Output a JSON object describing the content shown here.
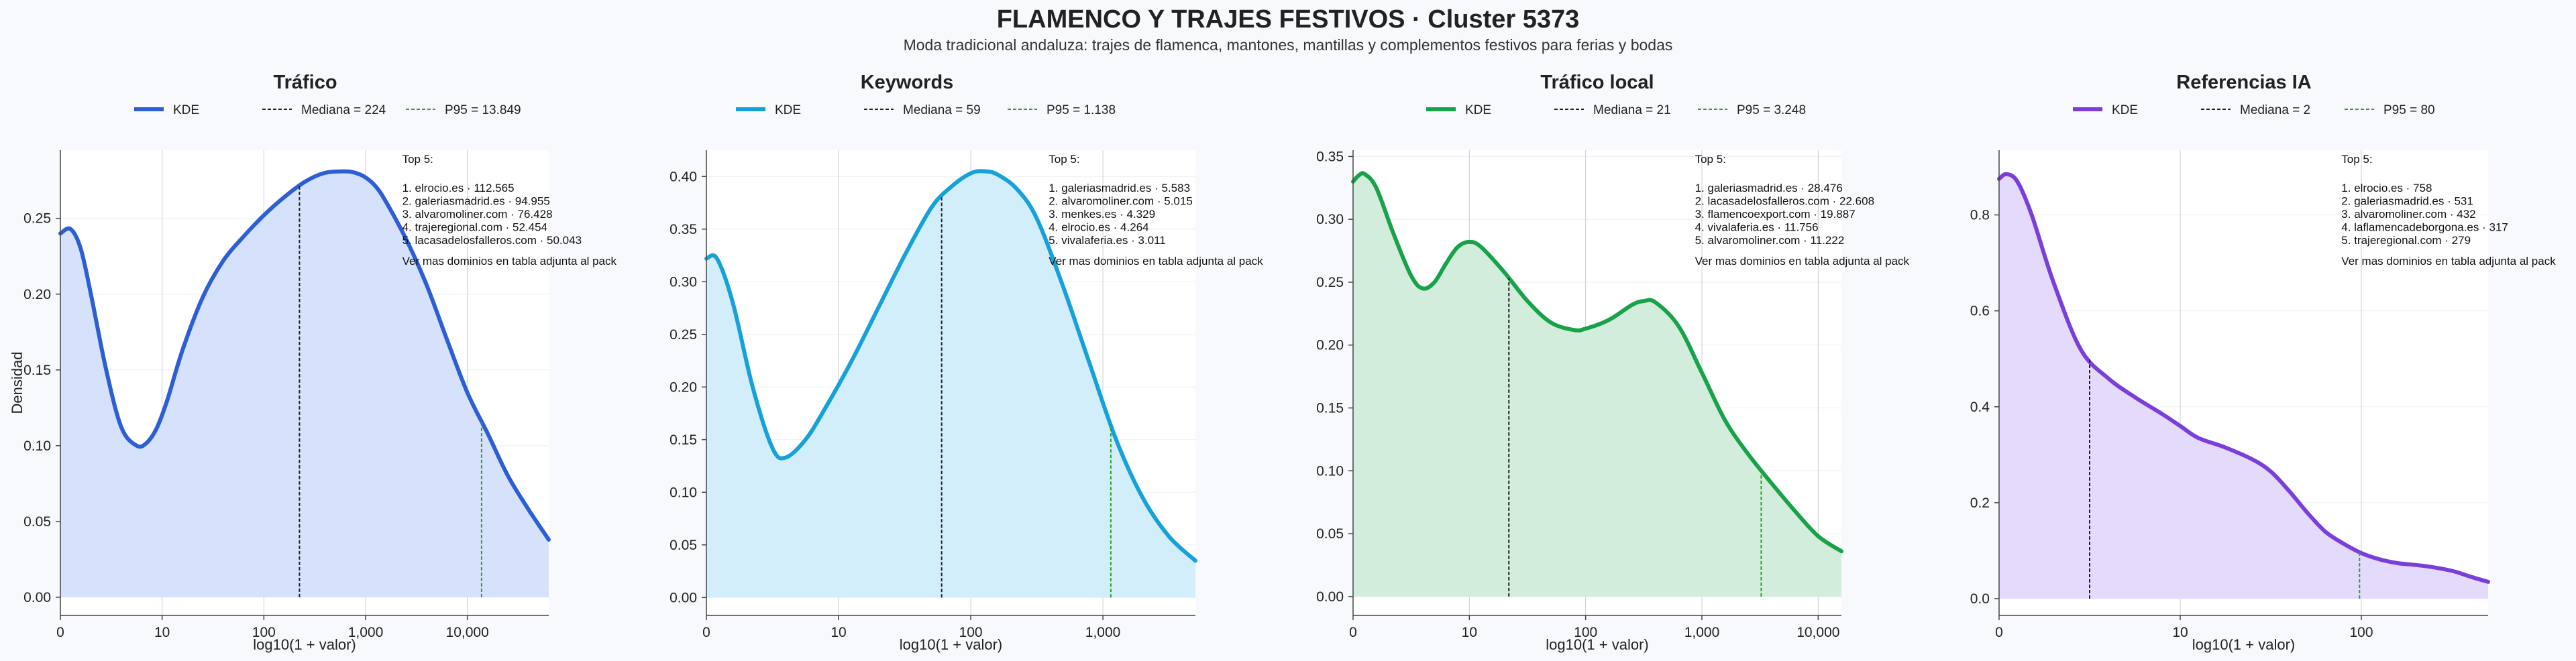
{
  "page": {
    "title": "FLAMENCO Y TRAJES FESTIVOS · Cluster 5373",
    "subtitle": "Moda tradicional andaluza: trajes de flamenca, mantones, mantillas y complementos festivos para ferias y bodas"
  },
  "colors": {
    "background": "#f7f9fc",
    "median_line": "#222222",
    "p95_line": "#2ca02c"
  },
  "chart_data": [
    {
      "type": "area",
      "title": "Tráfico",
      "color": "#2c5fd4",
      "fill": "#d6e2fb",
      "xlabel": "log10(1 + valor)",
      "ylabel": "Densidad",
      "xscale": "log",
      "xlim": [
        0,
        4.8
      ],
      "ylim": [
        -0.012,
        0.295
      ],
      "xticks": [
        {
          "v": 0,
          "label": "0"
        },
        {
          "v": 1,
          "label": "10"
        },
        {
          "v": 2,
          "label": "100"
        },
        {
          "v": 3,
          "label": "1,000"
        },
        {
          "v": 4,
          "label": "10,000"
        }
      ],
      "yticks": [
        {
          "v": 0,
          "label": "0.00"
        },
        {
          "v": 0.05,
          "label": "0.05"
        },
        {
          "v": 0.1,
          "label": "0.10"
        },
        {
          "v": 0.15,
          "label": "0.15"
        },
        {
          "v": 0.2,
          "label": "0.20"
        },
        {
          "v": 0.25,
          "label": "0.25"
        }
      ],
      "legend": [
        {
          "label": "KDE",
          "style": "line"
        },
        {
          "label": "Mediana = 224",
          "style": "median"
        },
        {
          "label": "P95 = 13.849",
          "style": "p95"
        }
      ],
      "legend_position": "top-center",
      "median_x": 2.35,
      "p95_x": 4.14,
      "series": [
        {
          "name": "KDE",
          "x": [
            0,
            0.1,
            0.2,
            0.3,
            0.45,
            0.6,
            0.75,
            0.85,
            0.95,
            1.05,
            1.2,
            1.4,
            1.6,
            1.8,
            2.0,
            2.2,
            2.4,
            2.6,
            2.8,
            2.9,
            3.0,
            3.1,
            3.2,
            3.4,
            3.6,
            3.8,
            4.0,
            4.2,
            4.4,
            4.6,
            4.8
          ],
          "y": [
            0.24,
            0.243,
            0.23,
            0.2,
            0.15,
            0.112,
            0.1,
            0.102,
            0.112,
            0.13,
            0.163,
            0.198,
            0.222,
            0.238,
            0.252,
            0.264,
            0.274,
            0.28,
            0.281,
            0.28,
            0.277,
            0.271,
            0.261,
            0.236,
            0.206,
            0.17,
            0.135,
            0.108,
            0.08,
            0.058,
            0.038
          ]
        }
      ],
      "annotation": {
        "title": "Top 5:",
        "lines": [
          "1. elrocio.es · 112.565",
          "2. galeriasmadrid.es · 94.955",
          "3. alvaromoliner.com · 76.428",
          "4. trajeregional.com · 52.454",
          "5. lacasadelosfalleros.com · 50.043"
        ],
        "footer": "Ver mas dominios en tabla adjunta al pack"
      }
    },
    {
      "type": "area",
      "title": "Keywords",
      "color": "#16a2d8",
      "fill": "#d2eefb",
      "xlabel": "log10(1 + valor)",
      "ylabel": "",
      "xscale": "log",
      "xlim": [
        0,
        3.7
      ],
      "ylim": [
        -0.017,
        0.425
      ],
      "xticks": [
        {
          "v": 0,
          "label": "0"
        },
        {
          "v": 1,
          "label": "10"
        },
        {
          "v": 2,
          "label": "100"
        },
        {
          "v": 3,
          "label": "1,000"
        }
      ],
      "yticks": [
        {
          "v": 0,
          "label": "0.00"
        },
        {
          "v": 0.05,
          "label": "0.05"
        },
        {
          "v": 0.1,
          "label": "0.10"
        },
        {
          "v": 0.15,
          "label": "0.15"
        },
        {
          "v": 0.2,
          "label": "0.20"
        },
        {
          "v": 0.25,
          "label": "0.25"
        },
        {
          "v": 0.3,
          "label": "0.30"
        },
        {
          "v": 0.35,
          "label": "0.35"
        },
        {
          "v": 0.4,
          "label": "0.40"
        }
      ],
      "legend": [
        {
          "label": "KDE",
          "style": "line"
        },
        {
          "label": "Mediana = 59",
          "style": "median"
        },
        {
          "label": "P95 = 1.138",
          "style": "p95"
        }
      ],
      "legend_position": "top-center",
      "median_x": 1.78,
      "p95_x": 3.06,
      "series": [
        {
          "name": "KDE",
          "x": [
            0,
            0.08,
            0.2,
            0.35,
            0.5,
            0.6,
            0.75,
            0.9,
            1.1,
            1.3,
            1.5,
            1.7,
            1.85,
            2.0,
            2.1,
            2.2,
            2.35,
            2.5,
            2.7,
            2.9,
            3.1,
            3.3,
            3.5,
            3.7
          ],
          "y": [
            0.322,
            0.322,
            0.28,
            0.2,
            0.142,
            0.133,
            0.15,
            0.18,
            0.225,
            0.275,
            0.325,
            0.37,
            0.39,
            0.403,
            0.405,
            0.402,
            0.388,
            0.36,
            0.295,
            0.222,
            0.15,
            0.095,
            0.058,
            0.035
          ]
        }
      ],
      "annotation": {
        "title": "Top 5:",
        "lines": [
          "1. galeriasmadrid.es · 5.583",
          "2. alvaromoliner.com · 5.015",
          "3. menkes.es · 4.329",
          "4. elrocio.es · 4.264",
          "5. vivalaferia.es · 3.011"
        ],
        "footer": "Ver mas dominios en tabla adjunta al pack"
      }
    },
    {
      "type": "area",
      "title": "Tráfico local",
      "color": "#18a24a",
      "fill": "#d2eddb",
      "xlabel": "log10(1 + valor)",
      "ylabel": "",
      "xscale": "log",
      "xlim": [
        0,
        4.2
      ],
      "ylim": [
        -0.015,
        0.355
      ],
      "xticks": [
        {
          "v": 0,
          "label": "0"
        },
        {
          "v": 1,
          "label": "10"
        },
        {
          "v": 2,
          "label": "100"
        },
        {
          "v": 3,
          "label": "1,000"
        },
        {
          "v": 4,
          "label": "10,000"
        }
      ],
      "yticks": [
        {
          "v": 0,
          "label": "0.00"
        },
        {
          "v": 0.05,
          "label": "0.05"
        },
        {
          "v": 0.1,
          "label": "0.10"
        },
        {
          "v": 0.15,
          "label": "0.15"
        },
        {
          "v": 0.2,
          "label": "0.20"
        },
        {
          "v": 0.25,
          "label": "0.25"
        },
        {
          "v": 0.3,
          "label": "0.30"
        },
        {
          "v": 0.35,
          "label": "0.35"
        }
      ],
      "legend": [
        {
          "label": "KDE",
          "style": "line"
        },
        {
          "label": "Mediana = 21",
          "style": "median"
        },
        {
          "label": "P95 = 3.248",
          "style": "p95"
        }
      ],
      "legend_position": "top-center",
      "median_x": 1.34,
      "p95_x": 3.51,
      "series": [
        {
          "name": "KDE",
          "x": [
            0,
            0.05,
            0.1,
            0.2,
            0.35,
            0.5,
            0.6,
            0.7,
            0.8,
            0.9,
            1.0,
            1.1,
            1.3,
            1.5,
            1.7,
            1.9,
            2.0,
            2.2,
            2.4,
            2.5,
            2.6,
            2.8,
            3.0,
            3.2,
            3.4,
            3.6,
            3.8,
            4.0,
            4.2
          ],
          "y": [
            0.33,
            0.335,
            0.336,
            0.325,
            0.288,
            0.255,
            0.245,
            0.25,
            0.265,
            0.278,
            0.282,
            0.278,
            0.258,
            0.235,
            0.218,
            0.212,
            0.213,
            0.22,
            0.232,
            0.235,
            0.234,
            0.215,
            0.178,
            0.14,
            0.113,
            0.09,
            0.068,
            0.048,
            0.036
          ]
        }
      ],
      "annotation": {
        "title": "Top 5:",
        "lines": [
          "1. galeriasmadrid.es · 28.476",
          "2. lacasadelosfalleros.com · 22.608",
          "3. flamencoexport.com · 19.887",
          "4. vivalaferia.es · 11.756",
          "5. alvaromoliner.com · 11.222"
        ],
        "footer": "Ver mas dominios en tabla adjunta al pack"
      }
    },
    {
      "type": "area",
      "title": "Referencias IA",
      "color": "#7a3fdb",
      "fill": "#e4dafb",
      "xlabel": "log10(1 + valor)",
      "ylabel": "",
      "xscale": "log",
      "xlim": [
        0,
        2.7
      ],
      "ylim": [
        -0.035,
        0.935
      ],
      "xticks": [
        {
          "v": 0,
          "label": "0"
        },
        {
          "v": 1,
          "label": "10"
        },
        {
          "v": 2,
          "label": "100"
        }
      ],
      "yticks": [
        {
          "v": 0,
          "label": "0.0"
        },
        {
          "v": 0.2,
          "label": "0.2"
        },
        {
          "v": 0.4,
          "label": "0.4"
        },
        {
          "v": 0.6,
          "label": "0.6"
        },
        {
          "v": 0.8,
          "label": "0.8"
        }
      ],
      "legend": [
        {
          "label": "KDE",
          "style": "line"
        },
        {
          "label": "Mediana = 2",
          "style": "median"
        },
        {
          "label": "P95 = 80",
          "style": "p95"
        }
      ],
      "legend_position": "top-center",
      "median_x": 0.5,
      "p95_x": 1.99,
      "series": [
        {
          "name": "KDE",
          "x": [
            0,
            0.04,
            0.1,
            0.18,
            0.3,
            0.45,
            0.6,
            0.75,
            0.9,
            1.0,
            1.1,
            1.25,
            1.4,
            1.5,
            1.6,
            1.7,
            1.8,
            1.9,
            2.0,
            2.1,
            2.2,
            2.35,
            2.5,
            2.6,
            2.7
          ],
          "y": [
            0.875,
            0.885,
            0.87,
            0.8,
            0.66,
            0.52,
            0.46,
            0.42,
            0.385,
            0.36,
            0.335,
            0.315,
            0.29,
            0.265,
            0.225,
            0.18,
            0.14,
            0.115,
            0.095,
            0.082,
            0.074,
            0.068,
            0.058,
            0.046,
            0.035
          ]
        }
      ],
      "annotation": {
        "title": "Top 5:",
        "lines": [
          "1. elrocio.es · 758",
          "2. galeriasmadrid.es · 531",
          "3. alvaromoliner.com · 432",
          "4. laflamencadeborgona.es · 317",
          "5. trajeregional.com · 279"
        ],
        "footer": "Ver mas dominios en tabla adjunta al pack"
      }
    }
  ]
}
